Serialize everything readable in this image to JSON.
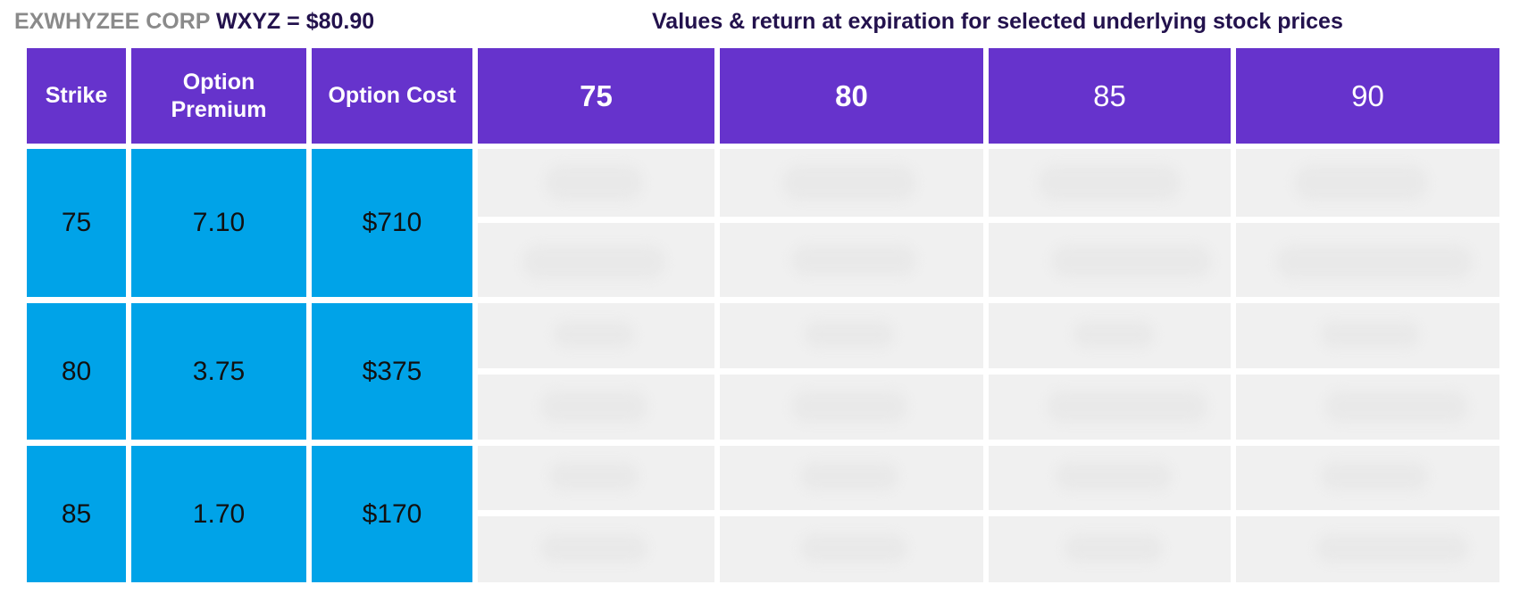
{
  "header": {
    "company": "EXWHYZEE CORP",
    "ticker_price": "WXYZ = $80.90",
    "values_title": "Values & return at expiration for selected underlying stock prices"
  },
  "table": {
    "columns": {
      "strike": "Strike",
      "premium_line1": "Option",
      "premium_line2": "Premium",
      "cost": "Option Cost"
    },
    "stock_prices": [
      "75",
      "80",
      "85",
      "90"
    ],
    "rows": [
      {
        "strike": "75",
        "premium": "7.10",
        "cost": "$710"
      },
      {
        "strike": "80",
        "premium": "3.75",
        "cost": "$375"
      },
      {
        "strike": "85",
        "premium": "1.70",
        "cost": "$170"
      }
    ]
  },
  "colors": {
    "header_purple": "#6633cc",
    "row_blue": "#00a3e8",
    "blurred_grey": "#f0f0f0",
    "title_navy": "#23124d",
    "company_grey": "#8a8a8a"
  }
}
